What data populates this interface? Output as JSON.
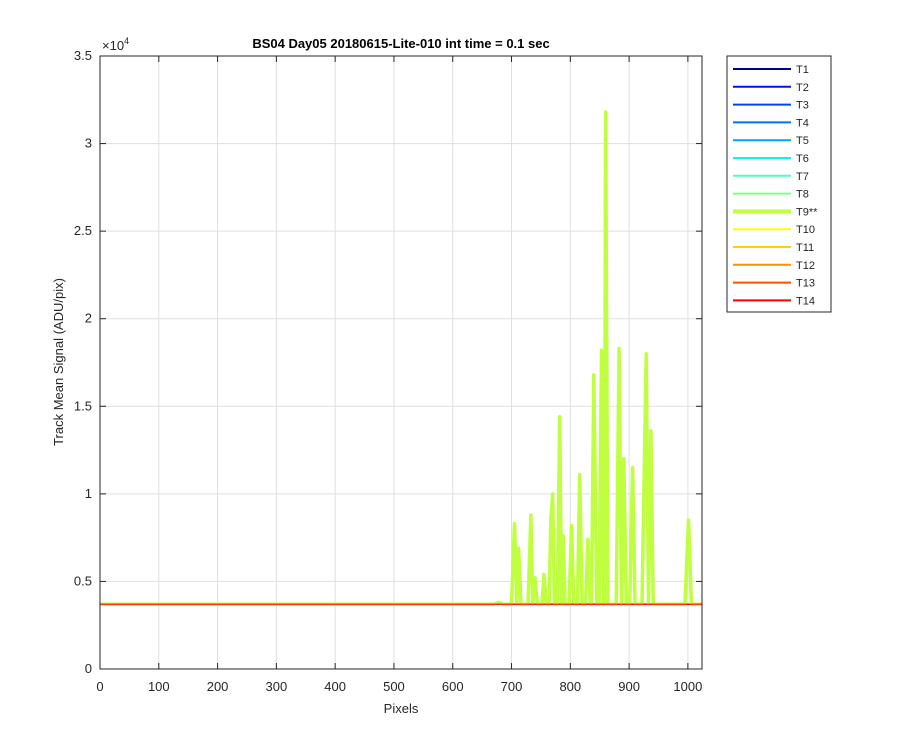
{
  "chart_data": {
    "type": "line",
    "title": "BS04 Day05 20180615-Lite-010 int time = 0.1 sec",
    "xlabel": "Pixels",
    "ylabel": "Track Mean Signal (ADU/pix)",
    "xlim": [
      0,
      1024
    ],
    "ylim": [
      0,
      35000
    ],
    "x_ticks": [
      0,
      100,
      200,
      300,
      400,
      500,
      600,
      700,
      800,
      900,
      1000
    ],
    "y_ticks": [
      0,
      5000,
      10000,
      15000,
      20000,
      25000,
      30000,
      35000
    ],
    "y_tick_labels": [
      "0",
      "0.5",
      "1",
      "1.5",
      "2",
      "2.5",
      "3",
      "3.5"
    ],
    "y_multiplier_base": "×10",
    "y_multiplier_exponent": "4",
    "grid": true,
    "legend_position": "outside-top-right",
    "baseline_value": 3700,
    "series": [
      {
        "name": "T1",
        "color": "#00008f"
      },
      {
        "name": "T2",
        "color": "#0010ff"
      },
      {
        "name": "T3",
        "color": "#0040ff"
      },
      {
        "name": "T4",
        "color": "#0070ff"
      },
      {
        "name": "T5",
        "color": "#00a0ff"
      },
      {
        "name": "T6",
        "color": "#10f0ef"
      },
      {
        "name": "T7",
        "color": "#50ffaf"
      },
      {
        "name": "T8",
        "color": "#80ff80"
      },
      {
        "name": "T9**",
        "color": "#bfff40",
        "highlight": true,
        "points": [
          [
            0,
            3700
          ],
          [
            670,
            3700
          ],
          [
            678,
            3800
          ],
          [
            686,
            3700
          ],
          [
            700,
            3700
          ],
          [
            705,
            8300
          ],
          [
            709,
            3700
          ],
          [
            712,
            6900
          ],
          [
            716,
            3700
          ],
          [
            728,
            3700
          ],
          [
            733,
            8800
          ],
          [
            736,
            3700
          ],
          [
            740,
            5200
          ],
          [
            744,
            3700
          ],
          [
            752,
            3700
          ],
          [
            755,
            5400
          ],
          [
            759,
            3700
          ],
          [
            764,
            3700
          ],
          [
            767,
            8600
          ],
          [
            770,
            10000
          ],
          [
            773,
            3700
          ],
          [
            778,
            3700
          ],
          [
            782,
            14400
          ],
          [
            785,
            3700
          ],
          [
            788,
            7600
          ],
          [
            791,
            3700
          ],
          [
            798,
            3700
          ],
          [
            802,
            8200
          ],
          [
            806,
            3700
          ],
          [
            812,
            3700
          ],
          [
            816,
            11100
          ],
          [
            820,
            3700
          ],
          [
            826,
            3700
          ],
          [
            830,
            7400
          ],
          [
            834,
            3700
          ],
          [
            836,
            3700
          ],
          [
            840,
            16800
          ],
          [
            845,
            3700
          ],
          [
            849,
            3700
          ],
          [
            853,
            18200
          ],
          [
            856,
            3700
          ],
          [
            858,
            3700
          ],
          [
            860,
            31800
          ],
          [
            864,
            3700
          ],
          [
            878,
            3700
          ],
          [
            883,
            18300
          ],
          [
            887,
            3700
          ],
          [
            891,
            12000
          ],
          [
            895,
            3700
          ],
          [
            901,
            3700
          ],
          [
            906,
            11500
          ],
          [
            910,
            3700
          ],
          [
            922,
            3700
          ],
          [
            929,
            18000
          ],
          [
            933,
            3700
          ],
          [
            937,
            13600
          ],
          [
            941,
            3700
          ],
          [
            995,
            3700
          ],
          [
            1001,
            8500
          ],
          [
            1006,
            3700
          ],
          [
            1024,
            3700
          ]
        ]
      },
      {
        "name": "T10",
        "color": "#ffff00"
      },
      {
        "name": "T11",
        "color": "#ffcf00"
      },
      {
        "name": "T12",
        "color": "#ff8f00"
      },
      {
        "name": "T13",
        "color": "#ff5000"
      },
      {
        "name": "T14",
        "color": "#ff0000"
      }
    ]
  }
}
